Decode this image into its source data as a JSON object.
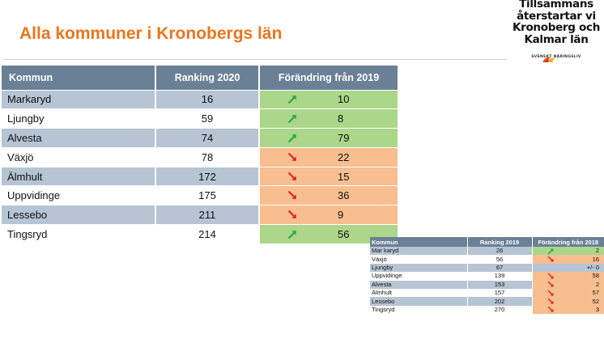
{
  "slide": {
    "title": "Alla kommuner i Kronobergs län"
  },
  "logo": {
    "line1": "Tillsammans",
    "line2": "återstartar vi",
    "line3": "Kronoberg och",
    "line4": "Kalmar län",
    "org": "SVENSKT NÄRINGSLIV",
    "flame_colors": [
      "#e94e1b",
      "#f5a623",
      "#c1272d"
    ]
  },
  "colors": {
    "header": "#6a8097",
    "row_shade": "#b6c4d3",
    "up_bg": "#acd68a",
    "down_bg": "#f8be8f",
    "up_arrow": "#2aa845",
    "down_arrow": "#d9261c",
    "title": "#e8761f"
  },
  "main_table": {
    "headers": [
      "Kommun",
      "Ranking 2020",
      "Förändring från 2019"
    ],
    "rows": [
      {
        "kommun": "Markaryd",
        "ranking": "16",
        "direction": "up",
        "change": "10"
      },
      {
        "kommun": "Ljungby",
        "ranking": "59",
        "direction": "up",
        "change": "8"
      },
      {
        "kommun": "Alvesta",
        "ranking": "74",
        "direction": "up",
        "change": "79"
      },
      {
        "kommun": "Växjö",
        "ranking": "78",
        "direction": "down",
        "change": "22"
      },
      {
        "kommun": "Älmhult",
        "ranking": "172",
        "direction": "down",
        "change": "15"
      },
      {
        "kommun": "Uppvidinge",
        "ranking": "175",
        "direction": "down",
        "change": "36"
      },
      {
        "kommun": "Lessebo",
        "ranking": "211",
        "direction": "down",
        "change": "9"
      },
      {
        "kommun": "Tingsryd",
        "ranking": "214",
        "direction": "up",
        "change": "56"
      }
    ]
  },
  "small_table": {
    "headers": [
      "Kommun",
      "Ranking 2019",
      "Förändring från 2018"
    ],
    "rows": [
      {
        "kommun": "Mar karyd",
        "ranking": "26",
        "direction": "up",
        "change": "2"
      },
      {
        "kommun": "Växjö",
        "ranking": "56",
        "direction": "down",
        "change": "16"
      },
      {
        "kommun": "Ljungby",
        "ranking": "67",
        "direction": "none",
        "change": "+/- 0"
      },
      {
        "kommun": "Uppvidinge",
        "ranking": "139",
        "direction": "down",
        "change": "58"
      },
      {
        "kommun": "Alvesta",
        "ranking": "153",
        "direction": "down",
        "change": "2"
      },
      {
        "kommun": "Älmhult",
        "ranking": "157",
        "direction": "down",
        "change": "57"
      },
      {
        "kommun": "Lessebo",
        "ranking": "202",
        "direction": "down",
        "change": "52"
      },
      {
        "kommun": "Tingsryd",
        "ranking": "270",
        "direction": "down",
        "change": "3"
      }
    ]
  }
}
